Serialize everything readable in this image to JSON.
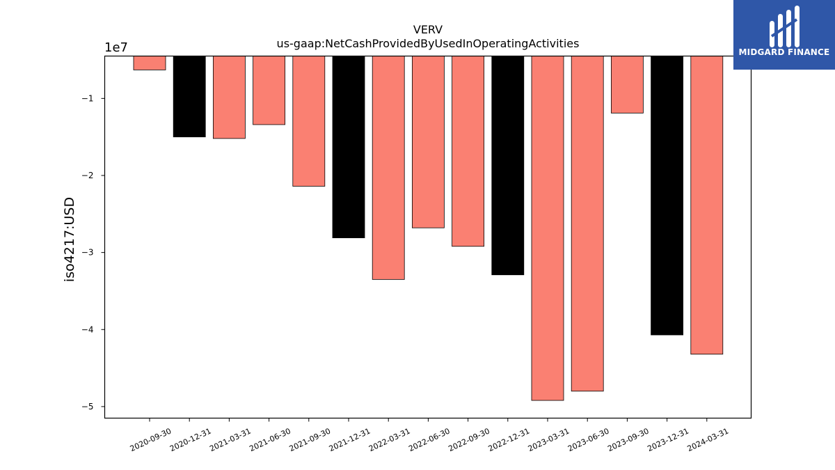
{
  "brand": {
    "name": "MIDGARD FINANCE",
    "background": "#2f57a8",
    "icon": "midgard-logo-icon"
  },
  "chart_data": {
    "type": "bar",
    "title": "VERV",
    "subtitle": "us-gaap:NetCashProvidedByUsedInOperatingActivities",
    "ylabel": "iso4217:USD",
    "xlabel": "",
    "offset_label": "1e7",
    "ylim": [
      -51500000,
      -4500000
    ],
    "yticks": [
      -10000000,
      -20000000,
      -30000000,
      -40000000,
      -50000000
    ],
    "ytick_labels": [
      "−1",
      "−2",
      "−3",
      "−4",
      "−5"
    ],
    "grid": false,
    "categories": [
      "2020-09-30",
      "2020-12-31",
      "2021-03-31",
      "2021-06-30",
      "2021-09-30",
      "2021-12-31",
      "2022-03-31",
      "2022-06-30",
      "2022-09-30",
      "2022-12-31",
      "2023-03-31",
      "2023-06-30",
      "2023-09-30",
      "2023-12-31",
      "2024-03-31"
    ],
    "values": [
      -6300000,
      -15000000,
      -15200000,
      -13400000,
      -21400000,
      -28100000,
      -33500000,
      -26800000,
      -29200000,
      -32900000,
      -49200000,
      -48000000,
      -11900000,
      -40700000,
      -43200000
    ],
    "bar_colors": [
      "#fa8072",
      "#000000",
      "#fa8072",
      "#fa8072",
      "#fa8072",
      "#000000",
      "#fa8072",
      "#fa8072",
      "#fa8072",
      "#000000",
      "#fa8072",
      "#fa8072",
      "#fa8072",
      "#000000",
      "#fa8072"
    ]
  }
}
